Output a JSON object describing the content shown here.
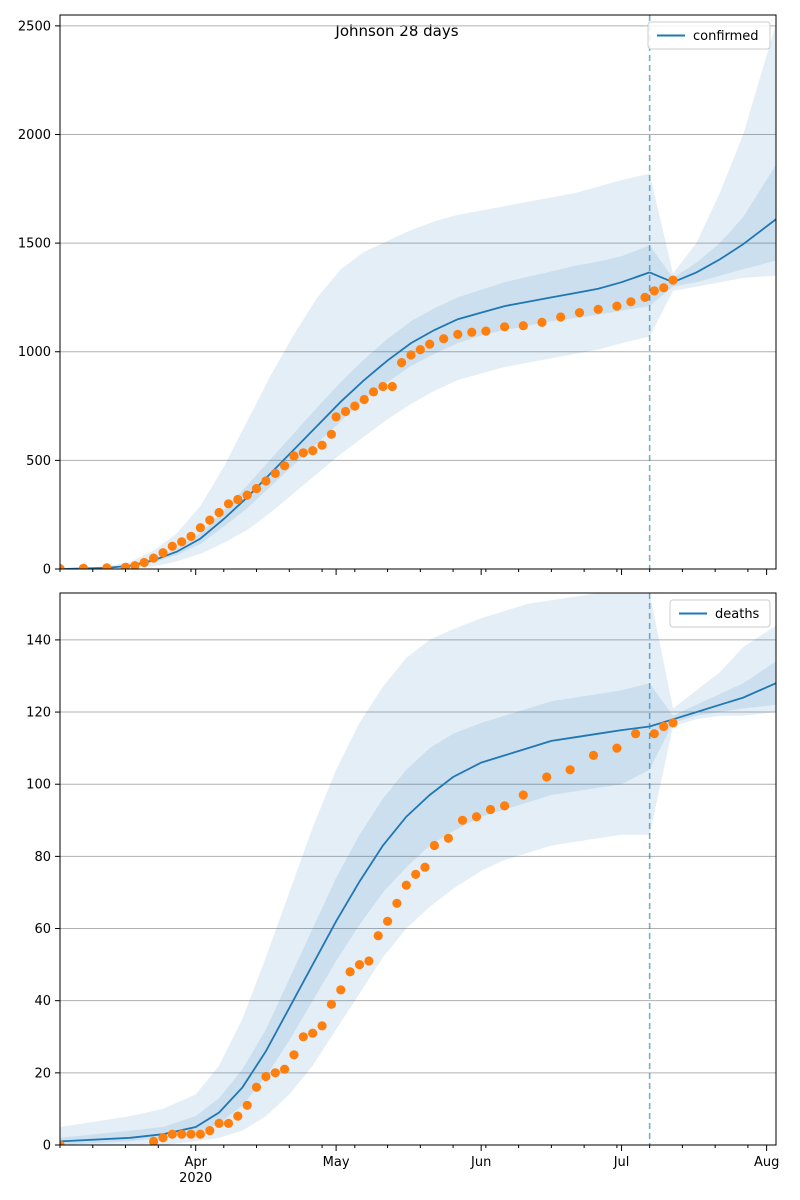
{
  "figure": {
    "title": "Johnson 28 days"
  },
  "chart_data": [
    {
      "type": "line",
      "panel": "confirmed",
      "title": "Johnson 28 days",
      "legend": {
        "label": "confirmed",
        "placement": "top-right"
      },
      "xlim": [
        "2020-03-03",
        "2020-08-03"
      ],
      "ylim": [
        0,
        2550
      ],
      "yticks": [
        0,
        500,
        1000,
        1500,
        2000,
        2500
      ],
      "grid": "horizontal",
      "forecast_start": "2020-07-07",
      "model_x": [
        "2020-03-03",
        "2020-03-13",
        "2020-03-18",
        "2020-03-23",
        "2020-03-28",
        "2020-04-02",
        "2020-04-07",
        "2020-04-12",
        "2020-04-17",
        "2020-04-22",
        "2020-04-27",
        "2020-05-02",
        "2020-05-07",
        "2020-05-12",
        "2020-05-17",
        "2020-05-22",
        "2020-05-27",
        "2020-06-01",
        "2020-06-06",
        "2020-06-11",
        "2020-06-16",
        "2020-06-21",
        "2020-06-26",
        "2020-07-01",
        "2020-07-07",
        "2020-07-12",
        "2020-07-17",
        "2020-07-22",
        "2020-07-27",
        "2020-08-03"
      ],
      "model_median": [
        0,
        5,
        15,
        40,
        80,
        140,
        230,
        330,
        440,
        550,
        660,
        770,
        870,
        960,
        1040,
        1100,
        1150,
        1180,
        1210,
        1230,
        1250,
        1270,
        1290,
        1320,
        1365,
        1320,
        1365,
        1425,
        1495,
        1610
      ],
      "band_50": [
        [
          0,
          0
        ],
        [
          3,
          7
        ],
        [
          10,
          20
        ],
        [
          30,
          50
        ],
        [
          65,
          95
        ],
        [
          115,
          165
        ],
        [
          195,
          270
        ],
        [
          280,
          385
        ],
        [
          380,
          505
        ],
        [
          480,
          625
        ],
        [
          580,
          745
        ],
        [
          680,
          860
        ],
        [
          780,
          965
        ],
        [
          860,
          1060
        ],
        [
          935,
          1140
        ],
        [
          990,
          1200
        ],
        [
          1040,
          1250
        ],
        [
          1075,
          1285
        ],
        [
          1100,
          1320
        ],
        [
          1120,
          1345
        ],
        [
          1140,
          1370
        ],
        [
          1155,
          1395
        ],
        [
          1170,
          1415
        ],
        [
          1190,
          1440
        ],
        [
          1210,
          1490
        ],
        [
          1300,
          1340
        ],
        [
          1320,
          1410
        ],
        [
          1350,
          1500
        ],
        [
          1380,
          1620
        ],
        [
          1420,
          1860
        ]
      ],
      "band_outer": [
        [
          0,
          0
        ],
        [
          0,
          12
        ],
        [
          3,
          32
        ],
        [
          12,
          85
        ],
        [
          35,
          165
        ],
        [
          70,
          290
        ],
        [
          120,
          470
        ],
        [
          180,
          680
        ],
        [
          260,
          890
        ],
        [
          350,
          1080
        ],
        [
          440,
          1250
        ],
        [
          530,
          1380
        ],
        [
          610,
          1460
        ],
        [
          690,
          1510
        ],
        [
          760,
          1560
        ],
        [
          820,
          1600
        ],
        [
          870,
          1630
        ],
        [
          900,
          1650
        ],
        [
          930,
          1670
        ],
        [
          950,
          1690
        ],
        [
          970,
          1710
        ],
        [
          990,
          1730
        ],
        [
          1010,
          1760
        ],
        [
          1040,
          1790
        ],
        [
          1070,
          1820
        ],
        [
          1280,
          1360
        ],
        [
          1300,
          1500
        ],
        [
          1320,
          1730
        ],
        [
          1340,
          2000
        ],
        [
          1350,
          2510
        ]
      ],
      "observed_x": [
        "2020-03-03",
        "2020-03-08",
        "2020-03-13",
        "2020-03-17",
        "2020-03-19",
        "2020-03-21",
        "2020-03-23",
        "2020-03-25",
        "2020-03-27",
        "2020-03-29",
        "2020-03-31",
        "2020-04-02",
        "2020-04-04",
        "2020-04-06",
        "2020-04-08",
        "2020-04-10",
        "2020-04-12",
        "2020-04-14",
        "2020-04-16",
        "2020-04-18",
        "2020-04-20",
        "2020-04-22",
        "2020-04-24",
        "2020-04-26",
        "2020-04-28",
        "2020-04-30",
        "2020-05-01",
        "2020-05-03",
        "2020-05-05",
        "2020-05-07",
        "2020-05-09",
        "2020-05-11",
        "2020-05-13",
        "2020-05-15",
        "2020-05-17",
        "2020-05-19",
        "2020-05-21",
        "2020-05-24",
        "2020-05-27",
        "2020-05-30",
        "2020-06-02",
        "2020-06-06",
        "2020-06-10",
        "2020-06-14",
        "2020-06-18",
        "2020-06-22",
        "2020-06-26",
        "2020-06-30",
        "2020-07-03",
        "2020-07-06",
        "2020-07-08",
        "2020-07-10",
        "2020-07-12"
      ],
      "observed_y": [
        2,
        3,
        5,
        8,
        15,
        30,
        50,
        75,
        105,
        125,
        150,
        190,
        225,
        260,
        300,
        320,
        340,
        370,
        405,
        440,
        475,
        520,
        535,
        545,
        570,
        620,
        700,
        725,
        750,
        780,
        815,
        840,
        840,
        950,
        985,
        1010,
        1035,
        1060,
        1080,
        1090,
        1095,
        1115,
        1120,
        1135,
        1160,
        1180,
        1195,
        1210,
        1230,
        1250,
        1280,
        1295,
        1330
      ]
    },
    {
      "type": "line",
      "panel": "deaths",
      "legend": {
        "label": "deaths",
        "placement": "top-right"
      },
      "xlim": [
        "2020-03-03",
        "2020-08-03"
      ],
      "ylim": [
        0,
        153
      ],
      "yticks": [
        0,
        20,
        40,
        60,
        80,
        100,
        120,
        140
      ],
      "xticks": [
        "Apr",
        "May",
        "Jun",
        "Jul",
        "Aug"
      ],
      "xtick_dates": [
        "2020-04-01",
        "2020-05-01",
        "2020-06-01",
        "2020-07-01",
        "2020-08-01"
      ],
      "x_year_label": "2020",
      "grid": "horizontal",
      "forecast_start": "2020-07-07",
      "model_x": [
        "2020-03-03",
        "2020-03-18",
        "2020-03-25",
        "2020-04-01",
        "2020-04-06",
        "2020-04-11",
        "2020-04-16",
        "2020-04-21",
        "2020-04-26",
        "2020-05-01",
        "2020-05-06",
        "2020-05-11",
        "2020-05-16",
        "2020-05-21",
        "2020-05-26",
        "2020-06-01",
        "2020-06-06",
        "2020-06-11",
        "2020-06-16",
        "2020-06-21",
        "2020-06-26",
        "2020-07-01",
        "2020-07-07",
        "2020-07-12",
        "2020-07-17",
        "2020-07-22",
        "2020-07-27",
        "2020-08-03"
      ],
      "model_median": [
        1,
        2,
        3,
        5,
        9,
        16,
        26,
        38,
        50,
        62,
        73,
        83,
        91,
        97,
        102,
        106,
        108,
        110,
        112,
        113,
        114,
        115,
        116,
        118,
        120,
        122,
        124,
        128
      ],
      "band_50": [
        [
          0,
          2
        ],
        [
          1,
          4
        ],
        [
          2,
          5
        ],
        [
          3,
          8
        ],
        [
          6,
          13
        ],
        [
          11,
          21
        ],
        [
          19,
          32
        ],
        [
          29,
          46
        ],
        [
          40,
          60
        ],
        [
          51,
          74
        ],
        [
          61,
          86
        ],
        [
          70,
          96
        ],
        [
          77,
          104
        ],
        [
          83,
          110
        ],
        [
          87,
          114
        ],
        [
          91,
          117
        ],
        [
          93,
          119
        ],
        [
          95,
          121
        ],
        [
          97,
          123
        ],
        [
          98,
          124
        ],
        [
          99,
          125
        ],
        [
          100,
          126
        ],
        [
          104,
          128
        ],
        [
          117,
          119
        ],
        [
          119,
          122
        ],
        [
          120,
          125
        ],
        [
          121,
          128
        ],
        [
          122,
          134
        ]
      ],
      "band_outer": [
        [
          0,
          5
        ],
        [
          0,
          8
        ],
        [
          0,
          10
        ],
        [
          1,
          14
        ],
        [
          2,
          22
        ],
        [
          4,
          35
        ],
        [
          8,
          52
        ],
        [
          14,
          70
        ],
        [
          22,
          88
        ],
        [
          32,
          104
        ],
        [
          42,
          117
        ],
        [
          52,
          127
        ],
        [
          60,
          135
        ],
        [
          66,
          140
        ],
        [
          71,
          143
        ],
        [
          76,
          146
        ],
        [
          79,
          148
        ],
        [
          81,
          150
        ],
        [
          83,
          151
        ],
        [
          84,
          152
        ],
        [
          85,
          153
        ],
        [
          86,
          153
        ],
        [
          86,
          153
        ],
        [
          116,
          121
        ],
        [
          118,
          126
        ],
        [
          119,
          131
        ],
        [
          119,
          138
        ],
        [
          120,
          144
        ]
      ],
      "observed_x": [
        "2020-03-03",
        "2020-03-23",
        "2020-03-25",
        "2020-03-27",
        "2020-03-29",
        "2020-03-31",
        "2020-04-02",
        "2020-04-04",
        "2020-04-06",
        "2020-04-08",
        "2020-04-10",
        "2020-04-12",
        "2020-04-14",
        "2020-04-16",
        "2020-04-18",
        "2020-04-20",
        "2020-04-22",
        "2020-04-24",
        "2020-04-26",
        "2020-04-28",
        "2020-04-30",
        "2020-05-02",
        "2020-05-04",
        "2020-05-06",
        "2020-05-08",
        "2020-05-10",
        "2020-05-12",
        "2020-05-14",
        "2020-05-16",
        "2020-05-18",
        "2020-05-20",
        "2020-05-22",
        "2020-05-25",
        "2020-05-28",
        "2020-05-31",
        "2020-06-03",
        "2020-06-06",
        "2020-06-10",
        "2020-06-15",
        "2020-06-20",
        "2020-06-25",
        "2020-06-30",
        "2020-07-04",
        "2020-07-08",
        "2020-07-10",
        "2020-07-12"
      ],
      "observed_y": [
        0,
        1,
        2,
        3,
        3,
        3,
        3,
        4,
        6,
        6,
        8,
        11,
        16,
        19,
        20,
        21,
        25,
        30,
        31,
        33,
        39,
        43,
        48,
        50,
        51,
        58,
        62,
        67,
        72,
        75,
        77,
        83,
        85,
        90,
        91,
        93,
        94,
        97,
        102,
        104,
        108,
        110,
        114,
        114,
        116,
        117
      ]
    }
  ]
}
